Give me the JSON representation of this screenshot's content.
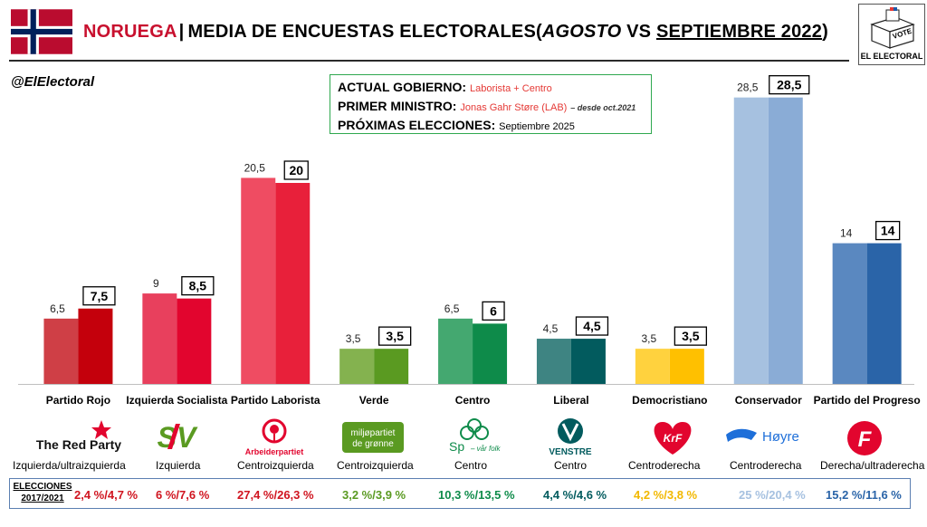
{
  "header": {
    "country": "NORUEGA",
    "separator": "|",
    "title_main": "MEDIA DE ENCUESTAS ELECTORALES",
    "title_paren_open": "(",
    "title_prev": "AGOSTO",
    "title_vs": " VS ",
    "title_curr": "SEPTIEMBRE 2022",
    "title_paren_close": ")"
  },
  "handle": "@ElElectoral",
  "logo_label": "EL ELECTORAL",
  "logo_vote": "VOTE",
  "info": {
    "gov_label": "ACTUAL GOBIERNO:",
    "gov_value": "Laborista + Centro",
    "pm_label": "PRIMER MINISTRO:",
    "pm_value": "Jonas Gahr Støre (LAB)",
    "pm_since": "– desde oct.2021",
    "next_label": "PRÓXIMAS ELECCIONES:",
    "next_value": "Septiembre 2025"
  },
  "chart_data": {
    "type": "bar",
    "categories": [
      "Partido Rojo",
      "Izquierda Socialista",
      "Partido Laborista",
      "Verde",
      "Centro",
      "Liberal",
      "Democristiano",
      "Conservador",
      "Partido del Progreso"
    ],
    "series": [
      {
        "name": "AGOSTO",
        "values": [
          6.5,
          9,
          20.5,
          3.5,
          6.5,
          4.5,
          3.5,
          28.5,
          14
        ]
      },
      {
        "name": "SEPTIEMBRE 2022",
        "values": [
          7.5,
          8.5,
          20,
          3.5,
          6,
          4.5,
          3.5,
          28.5,
          14
        ]
      }
    ],
    "labels_prev": [
      "6,5",
      "9",
      "20,5",
      "3,5",
      "6,5",
      "4,5",
      "3,5",
      "28,5",
      "14"
    ],
    "labels_curr": [
      "7,5",
      "8,5",
      "20",
      "3,5",
      "6",
      "4,5",
      "3,5",
      "28,5",
      "14"
    ],
    "colors_prev": [
      "#cf3f46",
      "#e8405d",
      "#ef4c62",
      "#84b24f",
      "#44a870",
      "#3e8482",
      "#ffd23e",
      "#a6c1e0",
      "#5a88c0"
    ],
    "colors_curr": [
      "#c4000c",
      "#e2052e",
      "#e8203a",
      "#5a9a21",
      "#0e8b4a",
      "#025b5e",
      "#ffc000",
      "#8aacd6",
      "#2a64a8"
    ],
    "ylim": [
      0,
      30
    ]
  },
  "ideologies": [
    "Izquierda/ultraizquierda",
    "Izquierda",
    "Centroizquierda",
    "Centroizquierda",
    "Centro",
    "Centro",
    "Centroderecha",
    "Centroderecha",
    "Derecha/ultraderecha"
  ],
  "results": {
    "label_line1": "ELECCIONES",
    "label_line2": "2017/2021",
    "values": [
      "2,4 %/4,7 %",
      "6 %/7,6 %",
      "27,4 %/26,3 %",
      "3,2 %/3,9 %",
      "10,3 %/13,5 %",
      "4,4 %/4,6 %",
      "4,2 %/3,8 %",
      "25 %/20,4 %",
      "15,2 %/11,6 %"
    ],
    "colors": [
      "#d0141f",
      "#d0141f",
      "#d0141f",
      "#5a9a21",
      "#0e8b4a",
      "#025b5e",
      "#f2b800",
      "#a6c1e0",
      "#2a64a8"
    ]
  },
  "party_logos": {
    "rojo": "The Red Party",
    "sv": "SV",
    "lab": "Arbeiderpartiet",
    "mdg_line1": "miljøpartiet",
    "mdg_line2": "de grønne",
    "sp": "Sp",
    "sp_tag": "– vår folk",
    "venstre": "VENSTRE",
    "krf": "KrF",
    "hoyre": "Høyre",
    "frp": "F"
  }
}
